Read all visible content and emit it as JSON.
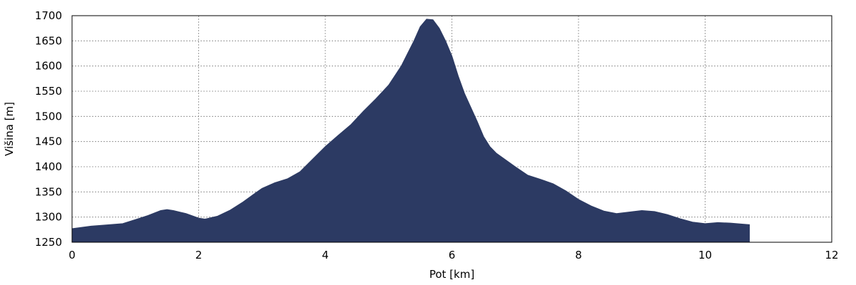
{
  "chart_data": {
    "type": "area",
    "xlabel": "Pot [km]",
    "ylabel": "Višina [m]",
    "xlim": [
      0,
      12
    ],
    "ylim": [
      1250,
      1700
    ],
    "xticks": [
      0,
      2,
      4,
      6,
      8,
      10,
      12
    ],
    "yticks": [
      1250,
      1300,
      1350,
      1400,
      1450,
      1500,
      1550,
      1600,
      1650,
      1700
    ],
    "grid": true,
    "fill_color": "#2c3a63",
    "series": [
      {
        "x": [
          0,
          0.3,
          0.5,
          0.8,
          1.0,
          1.2,
          1.4,
          1.5,
          1.6,
          1.8,
          2.0,
          2.1,
          2.3,
          2.5,
          2.7,
          2.9,
          3.0,
          3.2,
          3.4,
          3.6,
          3.8,
          4.0,
          4.2,
          4.4,
          4.6,
          4.8,
          5.0,
          5.2,
          5.3,
          5.4,
          5.5,
          5.6,
          5.7,
          5.8,
          5.9,
          6.0,
          6.1,
          6.2,
          6.4,
          6.5,
          6.6,
          6.7,
          6.8,
          7.0,
          7.2,
          7.4,
          7.6,
          7.8,
          8.0,
          8.2,
          8.4,
          8.6,
          8.8,
          9.0,
          9.2,
          9.4,
          9.6,
          9.8,
          10.0,
          10.2,
          10.4,
          10.6,
          10.7
        ],
        "y": [
          1277,
          1282,
          1284,
          1287,
          1295,
          1303,
          1313,
          1315,
          1313,
          1307,
          1298,
          1296,
          1302,
          1314,
          1330,
          1348,
          1357,
          1368,
          1376,
          1390,
          1415,
          1440,
          1462,
          1483,
          1510,
          1535,
          1562,
          1600,
          1625,
          1650,
          1678,
          1693,
          1692,
          1675,
          1650,
          1620,
          1580,
          1545,
          1490,
          1460,
          1440,
          1427,
          1418,
          1400,
          1383,
          1375,
          1366,
          1352,
          1335,
          1322,
          1312,
          1307,
          1310,
          1313,
          1311,
          1305,
          1297,
          1290,
          1287,
          1289,
          1288,
          1286,
          1285
        ]
      }
    ]
  }
}
